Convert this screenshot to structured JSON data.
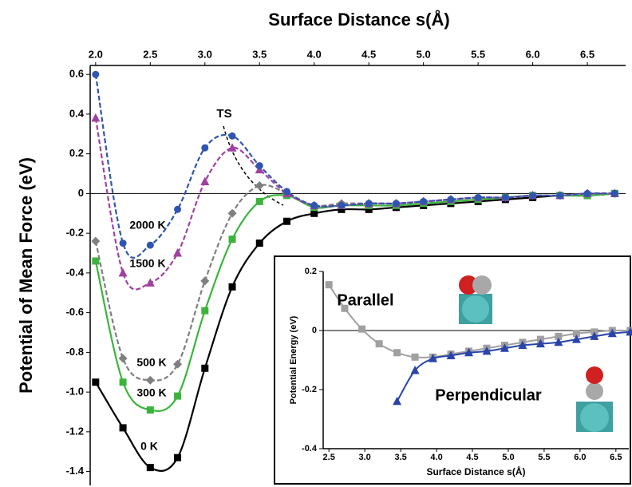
{
  "chart_data": [
    {
      "type": "line",
      "xlabel": "Surface Distance s(Å)",
      "ylabel": "Potential of Mean Force (eV)",
      "annotation": "TS",
      "x": [
        2.0,
        2.25,
        2.5,
        2.75,
        3.0,
        3.25,
        3.5,
        3.75,
        4.0,
        4.25,
        4.5,
        4.75,
        5.0,
        5.25,
        5.5,
        5.75,
        6.0,
        6.25,
        6.5,
        6.75
      ],
      "xlim": [
        1.95,
        6.85
      ],
      "xticks": [
        {
          "value": 2,
          "label": "2.0"
        },
        2.5,
        {
          "value": 3,
          "label": "3.0"
        },
        3.5,
        {
          "value": 4,
          "label": "4.0"
        },
        4.5,
        {
          "value": 5,
          "label": "5.0"
        },
        5.5,
        {
          "value": 6,
          "label": "6.0"
        },
        6.5
      ],
      "xaxis_position": "top",
      "ylim": [
        -1.47,
        0.645
      ],
      "yticks": [
        0.6,
        0.4,
        0.2,
        0,
        -0.2,
        -0.4,
        -0.6,
        -0.8,
        {
          "value": -1,
          "label": "-1.0"
        },
        -1.2,
        -1.4
      ],
      "series": [
        {
          "name": "0 K",
          "color": "#000000",
          "marker": "square",
          "dashed": false,
          "values": [
            -0.95,
            -1.18,
            -1.38,
            -1.33,
            -0.88,
            -0.47,
            -0.25,
            -0.14,
            -0.1,
            -0.08,
            -0.08,
            -0.07,
            -0.06,
            -0.05,
            -0.04,
            -0.03,
            -0.02,
            -0.01,
            -0.01,
            0
          ]
        },
        {
          "name": "300 K",
          "color": "#3cb43c",
          "marker": "square",
          "dashed": false,
          "values": [
            -0.34,
            -0.95,
            -1.09,
            -1.02,
            -0.59,
            -0.23,
            -0.04,
            -0.01,
            -0.07,
            -0.06,
            -0.06,
            -0.06,
            -0.05,
            -0.04,
            -0.03,
            -0.02,
            -0.01,
            -0.01,
            -0.01,
            0
          ]
        },
        {
          "name": "500 K",
          "color": "#7f7f7f",
          "marker": "diamond",
          "dashed": true,
          "values": [
            -0.24,
            -0.83,
            -0.94,
            -0.86,
            -0.44,
            -0.1,
            0.04,
            0.0,
            -0.06,
            -0.05,
            -0.05,
            -0.05,
            -0.04,
            -0.03,
            -0.02,
            -0.02,
            -0.01,
            -0.01,
            0,
            0
          ]
        },
        {
          "name": "1500 K",
          "color": "#a040a0",
          "marker": "triangle",
          "dashed": true,
          "values": [
            0.38,
            -0.4,
            -0.45,
            -0.3,
            0.06,
            0.23,
            0.12,
            0.0,
            -0.06,
            -0.06,
            -0.05,
            -0.05,
            -0.04,
            -0.03,
            -0.02,
            -0.02,
            -0.01,
            -0.01,
            0,
            0
          ]
        },
        {
          "name": "2000 K",
          "color": "#2f55b0",
          "marker": "circle",
          "dashed": true,
          "values": [
            0.6,
            -0.25,
            -0.26,
            -0.08,
            0.23,
            0.29,
            0.14,
            0.01,
            -0.06,
            -0.06,
            -0.05,
            -0.05,
            -0.04,
            -0.03,
            -0.02,
            -0.02,
            -0.01,
            -0.01,
            0,
            0
          ]
        }
      ]
    },
    {
      "type": "line",
      "xlabel": "Surface Distance s(Å)",
      "ylabel": "Potential Energy (eV)",
      "xlim": [
        2.42,
        6.68
      ],
      "xticks": [
        2.5,
        {
          "value": 3,
          "label": "3.0"
        },
        3.5,
        {
          "value": 4,
          "label": "4.0"
        },
        4.5,
        {
          "value": 5,
          "label": "5.0"
        },
        5.5,
        {
          "value": 6,
          "label": "6.0"
        },
        6.5
      ],
      "xaxis_position": "bottom",
      "ylim": [
        -0.4,
        0.2
      ],
      "yticks": [
        0.2,
        0,
        -0.2,
        -0.4
      ],
      "series": [
        {
          "name": "Parallel",
          "color": "#a0a0a0",
          "marker": "square",
          "dashed": false,
          "x": [
            2.5,
            2.72,
            2.96,
            3.2,
            3.45,
            3.7,
            3.95,
            4.2,
            4.45,
            4.7,
            4.95,
            5.2,
            5.45,
            5.7,
            5.95,
            6.2,
            6.45,
            6.7
          ],
          "values": [
            0.155,
            0.075,
            0.005,
            -0.045,
            -0.075,
            -0.09,
            -0.09,
            -0.08,
            -0.07,
            -0.06,
            -0.05,
            -0.04,
            -0.03,
            -0.02,
            -0.01,
            -0.005,
            0,
            0
          ]
        },
        {
          "name": "Perpendicular",
          "color": "#2a44a8",
          "marker": "triangle",
          "dashed": false,
          "x": [
            3.45,
            3.7,
            3.95,
            4.2,
            4.45,
            4.7,
            4.95,
            5.2,
            5.45,
            5.7,
            5.95,
            6.2,
            6.45,
            6.7
          ],
          "values": [
            -0.24,
            -0.135,
            -0.095,
            -0.085,
            -0.075,
            -0.07,
            -0.06,
            -0.05,
            -0.045,
            -0.04,
            -0.03,
            -0.02,
            -0.01,
            -0.005
          ]
        }
      ]
    }
  ]
}
